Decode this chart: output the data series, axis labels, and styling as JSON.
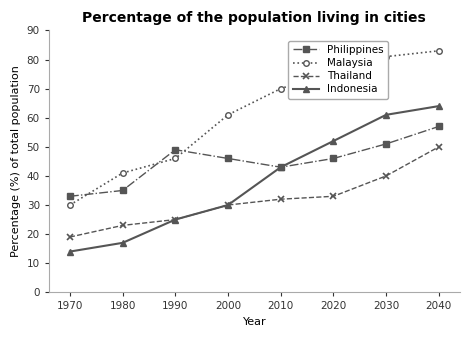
{
  "title": "Percentage of the population living in cities",
  "xlabel": "Year",
  "ylabel": "Percentage (%) of total population",
  "years": [
    1970,
    1980,
    1990,
    2000,
    2010,
    2020,
    2030,
    2040
  ],
  "philippines": [
    33,
    35,
    49,
    46,
    43,
    46,
    51,
    57
  ],
  "malaysia": [
    30,
    41,
    46,
    61,
    70,
    76,
    81,
    83
  ],
  "thailand": [
    19,
    23,
    25,
    30,
    32,
    33,
    40,
    50
  ],
  "indonesia": [
    14,
    17,
    25,
    30,
    43,
    52,
    61,
    64
  ],
  "ylim": [
    0,
    90
  ],
  "yticks": [
    0,
    10,
    20,
    30,
    40,
    50,
    60,
    70,
    80,
    90
  ],
  "color": "#555555",
  "background": "#ffffff",
  "title_fontsize": 10,
  "axis_label_fontsize": 8,
  "tick_fontsize": 7.5,
  "legend_fontsize": 7.5
}
